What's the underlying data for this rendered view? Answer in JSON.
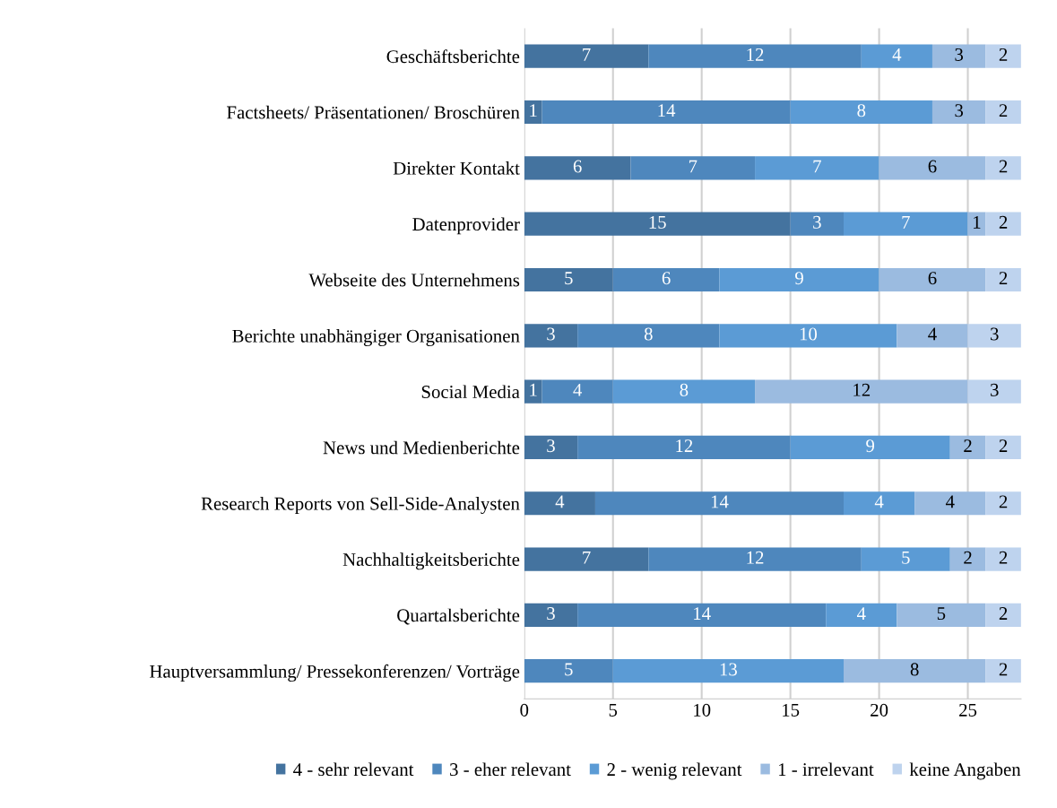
{
  "chart_data": {
    "type": "bar",
    "orientation": "horizontal",
    "stacked": true,
    "data_labels": true,
    "grid": "x",
    "legend": "bottom",
    "categories": [
      "Geschäftsberichte",
      "Factsheets/ Präsentationen/ Broschüren",
      "Direkter Kontakt",
      "Datenprovider",
      "Webseite des Unternehmens",
      "Berichte unabhängiger Organisationen",
      "Social Media",
      "News und Medienberichte",
      "Research Reports von Sell-Side-Analysten",
      "Nachhaltigkeitsberichte",
      "Quartalsberichte",
      "Hauptversammlung/ Pressekonferenzen/ Vorträge"
    ],
    "series": [
      {
        "name": "4 - sehr relevant",
        "color": "#44739f",
        "values": [
          7,
          1,
          6,
          15,
          5,
          3,
          1,
          3,
          4,
          7,
          3,
          null
        ]
      },
      {
        "name": "3 - eher relevant",
        "color": "#4e87bd",
        "values": [
          12,
          14,
          7,
          3,
          6,
          8,
          4,
          12,
          14,
          12,
          14,
          5
        ]
      },
      {
        "name": "2 - wenig relevant",
        "color": "#5b9bd5",
        "values": [
          4,
          8,
          7,
          7,
          9,
          10,
          8,
          9,
          4,
          5,
          4,
          13
        ]
      },
      {
        "name": "1 - irrelevant",
        "color": "#9bbbe0",
        "values": [
          3,
          3,
          6,
          1,
          6,
          4,
          12,
          2,
          4,
          2,
          5,
          8
        ]
      },
      {
        "name": "keine Angaben",
        "color": "#bed3ee",
        "values": [
          2,
          2,
          2,
          2,
          2,
          3,
          3,
          2,
          2,
          2,
          2,
          2
        ]
      }
    ],
    "xlim": [
      0,
      28
    ],
    "xticks": [
      0,
      5,
      10,
      15,
      20,
      25
    ]
  }
}
